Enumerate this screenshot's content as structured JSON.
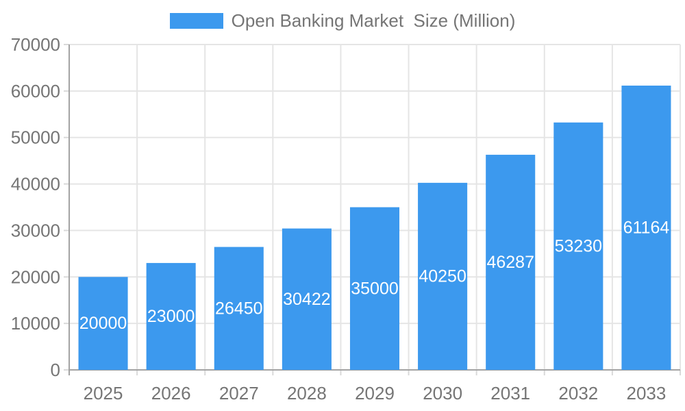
{
  "chart_data": {
    "type": "bar",
    "title": "Open Banking Market  Size (Million)",
    "categories": [
      "2025",
      "2026",
      "2027",
      "2028",
      "2029",
      "2030",
      "2031",
      "2032",
      "2033"
    ],
    "series": [
      {
        "name": "Open Banking Market  Size (Million)",
        "values": [
          20000,
          23000,
          26450,
          30422,
          35000,
          40250,
          46287,
          53230,
          61164
        ]
      }
    ],
    "xlabel": "",
    "ylabel": "",
    "ylim": [
      0,
      70000
    ],
    "ytick_step": 10000,
    "yticks": [
      "0",
      "10000",
      "20000",
      "30000",
      "40000",
      "50000",
      "60000",
      "70000"
    ],
    "grid": true,
    "legend_position": "top-center",
    "bar_labels_inside": true,
    "colors": {
      "bar": "#3C99EE",
      "bar_label": "#FFFFFF",
      "axis_line": "#A3A3A3",
      "grid_line": "#E5E5E5",
      "tick_mark": "#D9D9D9",
      "text": "#757575"
    }
  }
}
